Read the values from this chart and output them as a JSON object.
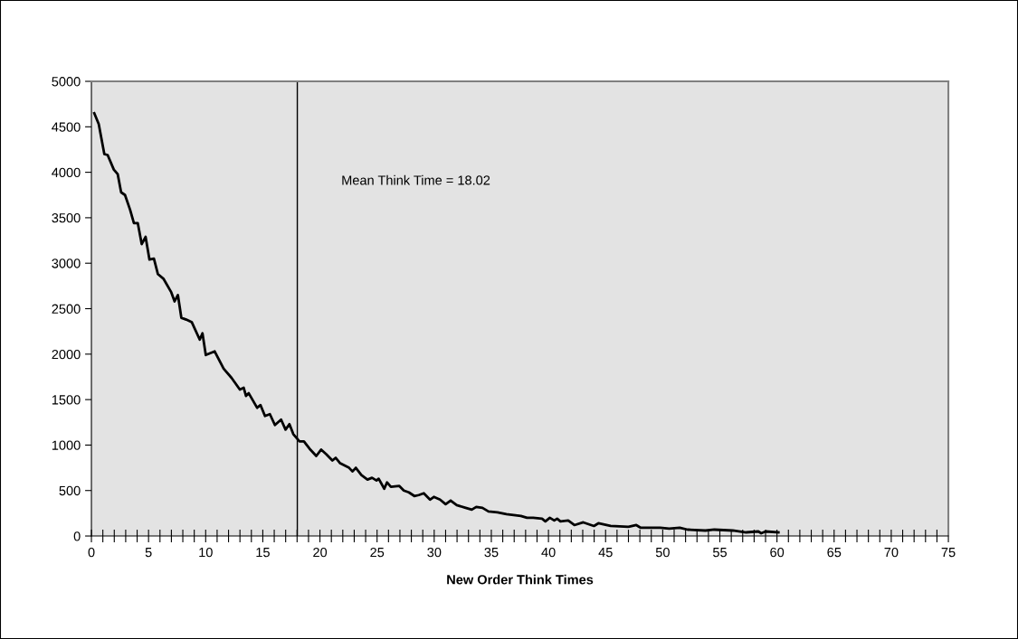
{
  "chart_data": {
    "type": "line",
    "xlabel": "New Order Think Times",
    "x": [
      0.25,
      0.64,
      1.13,
      1.42,
      1.96,
      2.3,
      2.6,
      2.94,
      3.38,
      3.72,
      4.06,
      4.4,
      4.74,
      5.08,
      5.47,
      5.82,
      6.3,
      6.99,
      7.28,
      7.57,
      7.87,
      8.3,
      8.79,
      9.48,
      9.72,
      10.01,
      10.4,
      10.79,
      11.57,
      12.26,
      12.99,
      13.33,
      13.53,
      13.77,
      14.5,
      14.8,
      15.19,
      15.62,
      16.06,
      16.6,
      16.99,
      17.33,
      17.67,
      18.21,
      18.6,
      19.09,
      19.68,
      20.11,
      20.55,
      21.09,
      21.38,
      21.77,
      22.55,
      22.85,
      23.14,
      23.63,
      24.16,
      24.56,
      24.95,
      25.14,
      25.63,
      25.87,
      26.21,
      26.95,
      27.34,
      27.78,
      28.26,
      28.65,
      29.09,
      29.63,
      29.97,
      30.51,
      31.0,
      31.44,
      31.97,
      32.75,
      33.29,
      33.68,
      34.22,
      34.75,
      35.54,
      36.32,
      37.59,
      38.12,
      38.66,
      39.44,
      39.73,
      40.12,
      40.51,
      40.76,
      41.05,
      41.73,
      42.27,
      43.05,
      43.98,
      44.37,
      45.44,
      47.0,
      47.69,
      48.08,
      49.78,
      50.57,
      51.49,
      52.18,
      53.74,
      54.52,
      56.13,
      57.3,
      58.37,
      58.62,
      59.01,
      60.13
    ],
    "series": [
      {
        "color": "#000000",
        "values": [
          4650,
          4530,
          4200,
          4190,
          4030,
          3980,
          3780,
          3750,
          3590,
          3440,
          3440,
          3210,
          3290,
          3040,
          3050,
          2880,
          2830,
          2680,
          2580,
          2650,
          2400,
          2380,
          2350,
          2160,
          2230,
          1990,
          2010,
          2030,
          1840,
          1740,
          1610,
          1630,
          1540,
          1570,
          1410,
          1440,
          1320,
          1340,
          1220,
          1280,
          1170,
          1230,
          1120,
          1040,
          1040,
          960,
          880,
          950,
          900,
          830,
          860,
          800,
          750,
          710,
          750,
          670,
          620,
          640,
          610,
          630,
          520,
          590,
          540,
          550,
          500,
          480,
          440,
          450,
          470,
          400,
          430,
          400,
          350,
          390,
          340,
          310,
          290,
          320,
          310,
          270,
          260,
          240,
          220,
          200,
          200,
          190,
          160,
          200,
          170,
          190,
          160,
          170,
          120,
          150,
          110,
          140,
          110,
          100,
          120,
          90,
          90,
          80,
          90,
          70,
          60,
          70,
          60,
          40,
          50,
          30,
          50,
          40
        ]
      }
    ],
    "xlim": [
      0,
      75
    ],
    "xticks": [
      0,
      {
        "value": 1,
        "label": null
      },
      {
        "value": 2,
        "label": null
      },
      {
        "value": 3,
        "label": null
      },
      {
        "value": 4,
        "label": null
      },
      5,
      {
        "value": 6,
        "label": null
      },
      {
        "value": 7,
        "label": null
      },
      {
        "value": 8,
        "label": null
      },
      {
        "value": 9,
        "label": null
      },
      10,
      {
        "value": 11,
        "label": null
      },
      {
        "value": 12,
        "label": null
      },
      {
        "value": 13,
        "label": null
      },
      {
        "value": 14,
        "label": null
      },
      15,
      {
        "value": 16,
        "label": null
      },
      {
        "value": 17,
        "label": null
      },
      {
        "value": 18,
        "label": null
      },
      {
        "value": 19,
        "label": null
      },
      20,
      {
        "value": 21,
        "label": null
      },
      {
        "value": 22,
        "label": null
      },
      {
        "value": 23,
        "label": null
      },
      {
        "value": 24,
        "label": null
      },
      25,
      {
        "value": 26,
        "label": null
      },
      {
        "value": 27,
        "label": null
      },
      {
        "value": 28,
        "label": null
      },
      {
        "value": 29,
        "label": null
      },
      30,
      {
        "value": 31,
        "label": null
      },
      {
        "value": 32,
        "label": null
      },
      {
        "value": 33,
        "label": null
      },
      {
        "value": 34,
        "label": null
      },
      35,
      {
        "value": 36,
        "label": null
      },
      {
        "value": 37,
        "label": null
      },
      {
        "value": 38,
        "label": null
      },
      {
        "value": 39,
        "label": null
      },
      40,
      {
        "value": 41,
        "label": null
      },
      {
        "value": 42,
        "label": null
      },
      {
        "value": 43,
        "label": null
      },
      {
        "value": 44,
        "label": null
      },
      45,
      {
        "value": 46,
        "label": null
      },
      {
        "value": 47,
        "label": null
      },
      {
        "value": 48,
        "label": null
      },
      {
        "value": 49,
        "label": null
      },
      50,
      {
        "value": 51,
        "label": null
      },
      {
        "value": 52,
        "label": null
      },
      {
        "value": 53,
        "label": null
      },
      {
        "value": 54,
        "label": null
      },
      55,
      {
        "value": 56,
        "label": null
      },
      {
        "value": 57,
        "label": null
      },
      {
        "value": 58,
        "label": null
      },
      {
        "value": 59,
        "label": null
      },
      60,
      {
        "value": 61,
        "label": null
      },
      {
        "value": 62,
        "label": null
      },
      {
        "value": 63,
        "label": null
      },
      {
        "value": 64,
        "label": null
      },
      65,
      {
        "value": 66,
        "label": null
      },
      {
        "value": 67,
        "label": null
      },
      {
        "value": 68,
        "label": null
      },
      {
        "value": 69,
        "label": null
      },
      70,
      {
        "value": 71,
        "label": null
      },
      {
        "value": 72,
        "label": null
      },
      {
        "value": 73,
        "label": null
      },
      {
        "value": 74,
        "label": null
      },
      75
    ],
    "ylim": [
      0,
      5000
    ],
    "yticks": [
      0,
      500,
      1000,
      1500,
      2000,
      2500,
      3000,
      3500,
      4000,
      4500,
      5000
    ],
    "ref_lines": [
      {
        "axis": "x",
        "value": 18.02,
        "label": "Mean Think Time = 18.02",
        "color": "#000000",
        "line_style": "solid"
      }
    ],
    "grid": false,
    "legend": false,
    "marker": "none",
    "line_style": "solid"
  }
}
